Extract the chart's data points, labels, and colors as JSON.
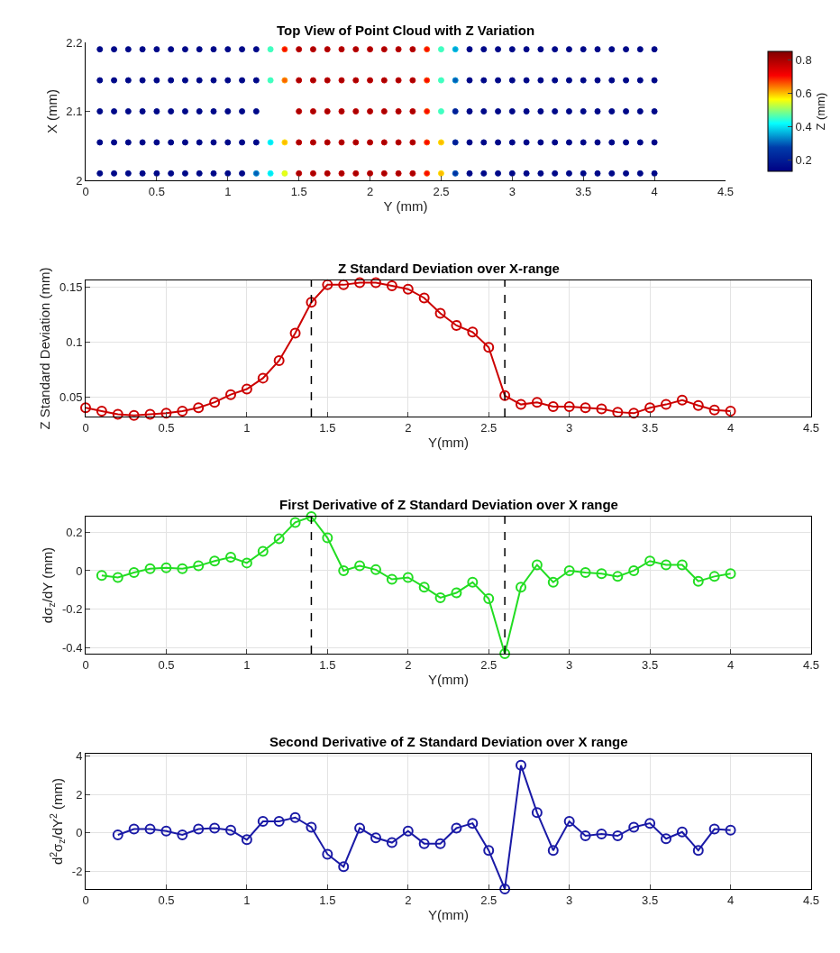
{
  "chart_data": [
    {
      "type": "scatter",
      "title": "Top View of Point Cloud with Z Variation",
      "xlabel": "Y (mm)",
      "ylabel": "X (mm)",
      "clabel": "Z (mm)",
      "marker": "circle",
      "grid": false,
      "x": [
        0.1,
        0.2,
        0.3,
        0.4,
        0.5,
        0.6,
        0.7,
        0.8,
        0.9,
        1.0,
        1.1,
        1.2,
        1.3,
        1.4,
        1.5,
        1.6,
        1.7,
        1.8,
        1.9,
        2.0,
        2.1,
        2.2,
        2.3,
        2.4,
        2.5,
        2.6,
        2.7,
        2.8,
        2.9,
        3.0,
        3.1,
        3.2,
        3.3,
        3.4,
        3.5,
        3.6,
        3.7,
        3.8,
        3.9,
        4.0
      ],
      "series": [
        {
          "values": [
            2.19,
            2.19,
            2.19,
            2.19,
            2.19,
            2.19,
            2.19,
            2.19,
            2.19,
            2.19,
            2.19,
            2.19,
            2.19,
            2.19,
            2.19,
            2.19,
            2.19,
            2.19,
            2.19,
            2.19,
            2.19,
            2.19,
            2.19,
            2.19,
            2.19,
            2.19,
            2.19,
            2.19,
            2.19,
            2.19,
            2.19,
            2.19,
            2.19,
            2.19,
            2.19,
            2.19,
            2.19,
            2.19,
            2.19,
            2.19
          ],
          "cvalues": [
            0.15,
            0.15,
            0.15,
            0.15,
            0.15,
            0.15,
            0.15,
            0.15,
            0.15,
            0.15,
            0.15,
            0.15,
            0.45,
            0.7,
            0.8,
            0.8,
            0.8,
            0.8,
            0.8,
            0.8,
            0.8,
            0.8,
            0.8,
            0.7,
            0.45,
            0.35,
            0.15,
            0.15,
            0.15,
            0.15,
            0.15,
            0.15,
            0.15,
            0.15,
            0.15,
            0.15,
            0.15,
            0.15,
            0.15,
            0.15
          ],
          "colors": [
            "#000d8c",
            "#000d8c",
            "#000d8c",
            "#000d8c",
            "#000d8c",
            "#000d8c",
            "#000d8c",
            "#000d8c",
            "#000d8c",
            "#000d8c",
            "#000d8c",
            "#000d8c",
            "#4affb8",
            "#fc5500",
            "#c40000",
            "#c40000",
            "#c40000",
            "#c40000",
            "#c40000",
            "#c40000",
            "#c40000",
            "#c40000",
            "#c40000",
            "#fc5500",
            "#4affb8",
            "#04c9e7",
            "#000d8c",
            "#000d8c",
            "#000d8c",
            "#000d8c",
            "#000d8c",
            "#000d8c",
            "#000d8c",
            "#000d8c",
            "#000d8c",
            "#000d8c",
            "#000d8c",
            "#000d8c",
            "#000d8c",
            "#000d8c"
          ]
        },
        {
          "values": [
            2.145,
            2.145,
            2.145,
            2.145,
            2.145,
            2.145,
            2.145,
            2.145,
            2.145,
            2.145,
            2.145,
            2.145,
            2.145,
            2.145,
            2.145,
            2.145,
            2.145,
            2.145,
            2.145,
            2.145,
            2.145,
            2.145,
            2.145,
            2.145,
            2.145,
            2.145,
            2.145,
            2.145,
            2.145,
            2.145,
            2.145,
            2.145,
            2.145,
            2.145,
            2.145,
            2.145,
            2.145,
            2.145,
            2.145,
            2.145
          ],
          "cvalues": [
            0.15,
            0.15,
            0.15,
            0.15,
            0.15,
            0.15,
            0.15,
            0.15,
            0.15,
            0.15,
            0.15,
            0.15,
            0.45,
            0.65,
            0.8,
            0.8,
            0.8,
            0.8,
            0.8,
            0.8,
            0.8,
            0.8,
            0.8,
            0.7,
            0.45,
            0.3,
            0.15,
            0.15,
            0.15,
            0.15,
            0.15,
            0.15,
            0.15,
            0.15,
            0.15,
            0.15,
            0.15,
            0.15,
            0.15,
            0.15
          ],
          "colors": [
            "#000d8c",
            "#000d8c",
            "#000d8c",
            "#000d8c",
            "#000d8c",
            "#000d8c",
            "#000d8c",
            "#000d8c",
            "#000d8c",
            "#000d8c",
            "#000d8c",
            "#000d8c",
            "#4affb8",
            "#fd9c00",
            "#c40000",
            "#c40000",
            "#c40000",
            "#c40000",
            "#c40000",
            "#c40000",
            "#c40000",
            "#c40000",
            "#c40000",
            "#fc5500",
            "#4affb8",
            "#0293d0",
            "#000d8c",
            "#000d8c",
            "#000d8c",
            "#000d8c",
            "#000d8c",
            "#000d8c",
            "#000d8c",
            "#000d8c",
            "#000d8c",
            "#000d8c",
            "#000d8c",
            "#000d8c",
            "#000d8c",
            "#000d8c"
          ]
        },
        {
          "values": [
            2.1,
            2.1,
            2.1,
            2.1,
            2.1,
            2.1,
            2.1,
            2.1,
            2.1,
            2.1,
            2.1,
            2.1,
            null,
            null,
            2.1,
            2.1,
            2.1,
            2.1,
            2.1,
            2.1,
            2.1,
            2.1,
            2.1,
            2.1,
            2.1,
            2.1,
            2.1,
            2.1,
            2.1,
            2.1,
            2.1,
            2.1,
            2.1,
            2.1,
            2.1,
            2.1,
            2.1,
            2.1,
            2.1,
            2.1
          ],
          "cvalues": [
            0.15,
            0.15,
            0.15,
            0.15,
            0.15,
            0.15,
            0.15,
            0.15,
            0.15,
            0.15,
            0.15,
            0.15,
            null,
            null,
            0.8,
            0.8,
            0.8,
            0.8,
            0.8,
            0.8,
            0.8,
            0.8,
            0.8,
            0.7,
            0.45,
            0.2,
            0.15,
            0.15,
            0.15,
            0.15,
            0.15,
            0.15,
            0.15,
            0.15,
            0.15,
            0.15,
            0.15,
            0.15,
            0.15,
            0.15
          ],
          "colors": [
            "#000d8c",
            "#000d8c",
            "#000d8c",
            "#000d8c",
            "#000d8c",
            "#000d8c",
            "#000d8c",
            "#000d8c",
            "#000d8c",
            "#000d8c",
            "#000d8c",
            "#000d8c",
            null,
            null,
            "#c40000",
            "#c40000",
            "#c40000",
            "#c40000",
            "#c40000",
            "#c40000",
            "#c40000",
            "#c40000",
            "#c40000",
            "#fc5500",
            "#4affb8",
            "#002fa1",
            "#000d8c",
            "#000d8c",
            "#000d8c",
            "#000d8c",
            "#000d8c",
            "#000d8c",
            "#000d8c",
            "#000d8c",
            "#000d8c",
            "#000d8c",
            "#000d8c",
            "#000d8c",
            "#000d8c",
            "#000d8c"
          ]
        },
        {
          "values": [
            2.055,
            2.055,
            2.055,
            2.055,
            2.055,
            2.055,
            2.055,
            2.055,
            2.055,
            2.055,
            2.055,
            2.055,
            2.055,
            2.055,
            2.055,
            2.055,
            2.055,
            2.055,
            2.055,
            2.055,
            2.055,
            2.055,
            2.055,
            2.055,
            2.055,
            2.055,
            2.055,
            2.055,
            2.055,
            2.055,
            2.055,
            2.055,
            2.055,
            2.055,
            2.055,
            2.055,
            2.055,
            2.055,
            2.055,
            2.055
          ],
          "cvalues": [
            0.15,
            0.15,
            0.15,
            0.15,
            0.15,
            0.15,
            0.15,
            0.15,
            0.15,
            0.15,
            0.15,
            0.15,
            0.4,
            0.6,
            0.8,
            0.8,
            0.8,
            0.8,
            0.8,
            0.8,
            0.8,
            0.8,
            0.8,
            0.7,
            0.6,
            0.2,
            0.15,
            0.15,
            0.15,
            0.15,
            0.15,
            0.15,
            0.15,
            0.15,
            0.15,
            0.15,
            0.15,
            0.15,
            0.15,
            0.15
          ],
          "colors": [
            "#000d8c",
            "#000d8c",
            "#000d8c",
            "#000d8c",
            "#000d8c",
            "#000d8c",
            "#000d8c",
            "#000d8c",
            "#000d8c",
            "#000d8c",
            "#000d8c",
            "#000d8c",
            "#05ffff",
            "#fee300",
            "#c40000",
            "#c40000",
            "#c40000",
            "#c40000",
            "#c40000",
            "#c40000",
            "#c40000",
            "#c40000",
            "#c40000",
            "#fc5500",
            "#fee300",
            "#002fa1",
            "#000d8c",
            "#000d8c",
            "#000d8c",
            "#000d8c",
            "#000d8c",
            "#000d8c",
            "#000d8c",
            "#000d8c",
            "#000d8c",
            "#000d8c",
            "#000d8c",
            "#000d8c",
            "#000d8c",
            "#000d8c"
          ]
        },
        {
          "values": [
            2.01,
            2.01,
            2.01,
            2.01,
            2.01,
            2.01,
            2.01,
            2.01,
            2.01,
            2.01,
            2.01,
            2.01,
            2.01,
            2.01,
            2.01,
            2.01,
            2.01,
            2.01,
            2.01,
            2.01,
            2.01,
            2.01,
            2.01,
            2.01,
            2.01,
            2.01,
            2.01,
            2.01,
            2.01,
            2.01,
            2.01,
            2.01,
            2.01,
            2.01,
            2.01,
            2.01,
            2.01,
            2.01,
            2.01,
            2.01
          ],
          "cvalues": [
            0.15,
            0.15,
            0.15,
            0.15,
            0.15,
            0.15,
            0.15,
            0.15,
            0.15,
            0.15,
            0.15,
            0.3,
            0.4,
            0.55,
            0.8,
            0.8,
            0.8,
            0.8,
            0.8,
            0.8,
            0.8,
            0.8,
            0.8,
            0.7,
            0.6,
            0.25,
            0.15,
            0.15,
            0.15,
            0.15,
            0.15,
            0.15,
            0.15,
            0.15,
            0.15,
            0.15,
            0.15,
            0.15,
            0.15,
            0.15
          ],
          "colors": [
            "#000d8c",
            "#000d8c",
            "#000d8c",
            "#000d8c",
            "#000d8c",
            "#000d8c",
            "#000d8c",
            "#000d8c",
            "#000d8c",
            "#000d8c",
            "#000d8c",
            "#0293d0",
            "#05ffff",
            "#d5ff2b",
            "#c40000",
            "#c40000",
            "#c40000",
            "#c40000",
            "#c40000",
            "#c40000",
            "#c40000",
            "#c40000",
            "#c40000",
            "#fc5500",
            "#fee300",
            "#015cb8",
            "#000d8c",
            "#000d8c",
            "#000d8c",
            "#000d8c",
            "#000d8c",
            "#000d8c",
            "#000d8c",
            "#000d8c",
            "#000d8c",
            "#000d8c",
            "#000d8c",
            "#000d8c",
            "#000d8c",
            "#000d8c"
          ]
        }
      ],
      "xlim": [
        0,
        4.5
      ],
      "xticks": [
        0,
        0.5,
        1,
        1.5,
        2,
        2.5,
        3,
        3.5,
        4,
        4.5
      ],
      "ylim": [
        2,
        2.2
      ],
      "yticks": [
        2,
        2.1,
        2.2
      ],
      "clim": [
        0.13,
        0.85
      ],
      "cticks": [
        0.2,
        0.4,
        0.6,
        0.8
      ]
    },
    {
      "type": "line",
      "title": "Z Standard Deviation over X-range",
      "xlabel": "Y(mm)",
      "ylabel": "Z Standard Deviation (mm)",
      "marker": "circle",
      "line_style": "solid",
      "grid": true,
      "x": [
        0,
        0.1,
        0.2,
        0.3,
        0.4,
        0.5,
        0.6,
        0.7,
        0.8,
        0.9,
        1.0,
        1.1,
        1.2,
        1.3,
        1.4,
        1.5,
        1.6,
        1.7,
        1.8,
        1.9,
        2.0,
        2.1,
        2.2,
        2.3,
        2.4,
        2.5,
        2.6,
        2.7,
        2.8,
        2.9,
        3.0,
        3.1,
        3.2,
        3.3,
        3.4,
        3.5,
        3.6,
        3.7,
        3.8,
        3.9,
        4.0
      ],
      "series": [
        {
          "color": "#cc0000",
          "values": [
            0.04,
            0.037,
            0.034,
            0.033,
            0.034,
            0.035,
            0.037,
            0.04,
            0.045,
            0.052,
            0.057,
            0.067,
            0.083,
            0.108,
            0.136,
            0.152,
            0.152,
            0.154,
            0.154,
            0.151,
            0.148,
            0.14,
            0.126,
            0.115,
            0.109,
            0.095,
            0.051,
            0.043,
            0.045,
            0.041,
            0.041,
            0.04,
            0.039,
            0.036,
            0.035,
            0.04,
            0.043,
            0.047,
            0.042,
            0.038,
            0.037
          ]
        }
      ],
      "ref_lines": [
        {
          "axis": "x",
          "value": 1.4,
          "color": "#000000",
          "line_style": "dashed"
        },
        {
          "axis": "x",
          "value": 2.6,
          "color": "#000000",
          "line_style": "dashed"
        }
      ],
      "xlim": [
        0,
        4.5
      ],
      "xticks": [
        0,
        0.5,
        1,
        1.5,
        2,
        2.5,
        3,
        3.5,
        4,
        4.5
      ],
      "ylim": [
        0.032,
        0.156
      ],
      "yticks": [
        0.05,
        0.1,
        0.15
      ]
    },
    {
      "type": "line",
      "title": "First Derivative of Z Standard Deviation over X range",
      "xlabel": "Y(mm)",
      "ylabel": "dσ$_{z}$/dY (mm)",
      "marker": "circle",
      "line_style": "solid",
      "grid": true,
      "x": [
        0.1,
        0.2,
        0.3,
        0.4,
        0.5,
        0.6,
        0.7,
        0.8,
        0.9,
        1.0,
        1.1,
        1.2,
        1.3,
        1.4,
        1.5,
        1.6,
        1.7,
        1.8,
        1.9,
        2.0,
        2.1,
        2.2,
        2.3,
        2.4,
        2.5,
        2.6,
        2.7,
        2.8,
        2.9,
        3.0,
        3.1,
        3.2,
        3.3,
        3.4,
        3.5,
        3.6,
        3.7,
        3.8,
        3.9,
        4.0
      ],
      "series": [
        {
          "color": "#22dd22",
          "values": [
            -0.025,
            -0.035,
            -0.01,
            0.01,
            0.015,
            0.01,
            0.025,
            0.05,
            0.07,
            0.04,
            0.1,
            0.165,
            0.25,
            0.28,
            0.17,
            0.0,
            0.025,
            0.005,
            -0.045,
            -0.035,
            -0.085,
            -0.14,
            -0.115,
            -0.06,
            -0.145,
            -0.43,
            -0.085,
            0.03,
            -0.06,
            0.0,
            -0.01,
            -0.015,
            -0.03,
            0.0,
            0.05,
            0.03,
            0.03,
            -0.055,
            -0.03,
            -0.015
          ]
        }
      ],
      "ref_lines": [
        {
          "axis": "x",
          "value": 1.4,
          "color": "#000000",
          "line_style": "dashed"
        },
        {
          "axis": "x",
          "value": 2.6,
          "color": "#000000",
          "line_style": "dashed"
        }
      ],
      "xlim": [
        0,
        4.5
      ],
      "xticks": [
        0,
        0.5,
        1,
        1.5,
        2,
        2.5,
        3,
        3.5,
        4,
        4.5
      ],
      "ylim": [
        -0.43,
        0.28
      ],
      "yticks": [
        -0.4,
        -0.2,
        0,
        0.2
      ]
    },
    {
      "type": "line",
      "title": "Second Derivative of Z Standard Deviation over X range",
      "xlabel": "Y(mm)",
      "ylabel": "d$^{2}$σ$_{z}$/dY$^{2}$ (mm)",
      "marker": "circle",
      "line_style": "solid",
      "grid": true,
      "x": [
        0.2,
        0.3,
        0.4,
        0.5,
        0.6,
        0.7,
        0.8,
        0.9,
        1.0,
        1.1,
        1.2,
        1.3,
        1.4,
        1.5,
        1.6,
        1.7,
        1.8,
        1.9,
        2.0,
        2.1,
        2.2,
        2.3,
        2.4,
        2.5,
        2.6,
        2.7,
        2.8,
        2.9,
        3.0,
        3.1,
        3.2,
        3.3,
        3.4,
        3.5,
        3.6,
        3.7,
        3.8,
        3.9,
        4.0
      ],
      "series": [
        {
          "color": "#1a1aa6",
          "values": [
            -0.1,
            0.2,
            0.2,
            0.1,
            -0.1,
            0.2,
            0.25,
            0.15,
            -0.35,
            0.6,
            0.6,
            0.8,
            0.3,
            -1.1,
            -1.75,
            0.25,
            -0.25,
            -0.5,
            0.1,
            -0.55,
            -0.55,
            0.25,
            0.5,
            -0.9,
            -2.9,
            3.5,
            1.05,
            -0.9,
            0.6,
            -0.15,
            -0.05,
            -0.15,
            0.3,
            0.5,
            -0.3,
            0.05,
            -0.9,
            0.2,
            0.15
          ]
        }
      ],
      "xlim": [
        0,
        4.5
      ],
      "xticks": [
        0,
        0.5,
        1,
        1.5,
        2,
        2.5,
        3,
        3.5,
        4,
        4.5
      ],
      "ylim": [
        -2.9,
        4.1
      ],
      "yticks": [
        -2,
        0,
        2,
        4
      ]
    }
  ]
}
